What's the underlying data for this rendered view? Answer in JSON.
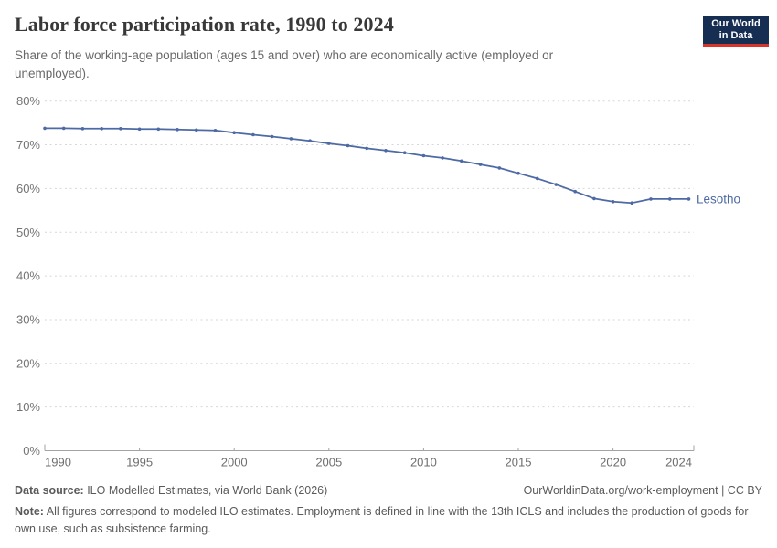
{
  "header": {
    "title": "Labor force participation rate, 1990 to 2024",
    "subtitle": "Share of the working-age population (ages 15 and over) who are economically active (employed or unemployed)."
  },
  "logo": {
    "line1": "Our World",
    "line2": "in Data",
    "bg_color": "#152e52",
    "accent_color": "#d7352c"
  },
  "chart_data": {
    "type": "line",
    "title": "Labor force participation rate, 1990 to 2024",
    "x": [
      1990,
      1991,
      1992,
      1993,
      1994,
      1995,
      1996,
      1997,
      1998,
      1999,
      2000,
      2001,
      2002,
      2003,
      2004,
      2005,
      2006,
      2007,
      2008,
      2009,
      2010,
      2011,
      2012,
      2013,
      2014,
      2015,
      2016,
      2017,
      2018,
      2019,
      2020,
      2021,
      2022,
      2023,
      2024
    ],
    "series": [
      {
        "name": "Lesotho",
        "color": "#4d6aa5",
        "values": [
          73.8,
          73.8,
          73.7,
          73.7,
          73.7,
          73.6,
          73.6,
          73.5,
          73.4,
          73.3,
          72.8,
          72.3,
          71.9,
          71.4,
          70.9,
          70.3,
          69.8,
          69.2,
          68.7,
          68.2,
          67.5,
          67.0,
          66.3,
          65.5,
          64.7,
          63.5,
          62.3,
          60.9,
          59.3,
          57.7,
          57.0,
          56.7,
          57.6,
          57.6,
          57.6
        ]
      }
    ],
    "unit": "%",
    "ylim": [
      0,
      80
    ],
    "ytick_interval": 10,
    "xticks": [
      1990,
      1995,
      2000,
      2005,
      2010,
      2015,
      2020,
      2024
    ],
    "grid": "horizontal-dashed",
    "legend_position": "end-of-line-label",
    "entity_label": "Lesotho"
  },
  "footer": {
    "source_label": "Data source:",
    "source_text": " ILO Modelled Estimates, via World Bank (2026)",
    "link_text": "OurWorldinData.org/work-employment | CC BY",
    "note_label": "Note:",
    "note_text": " All figures correspond to modeled ILO estimates. Employment is defined in line with the 13th ICLS and includes the production of goods for own use, such as subsistence farming."
  }
}
